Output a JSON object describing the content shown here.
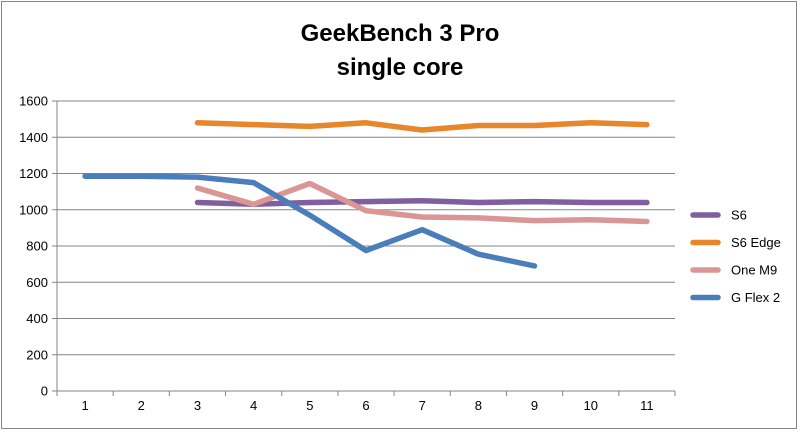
{
  "chart_data": {
    "type": "line",
    "title": "GeekBench 3 Pro",
    "subtitle": "single core",
    "xlabel": "",
    "ylabel": "",
    "x": [
      1,
      2,
      3,
      4,
      5,
      6,
      7,
      8,
      9,
      10,
      11
    ],
    "ylim": [
      0,
      1600
    ],
    "yticks": [
      0,
      200,
      400,
      600,
      800,
      1000,
      1200,
      1400,
      1600
    ],
    "grid": "horizontal",
    "legend": "right",
    "series": [
      {
        "name": "S6",
        "color": "#7F5F9F",
        "values": [
          null,
          null,
          1040,
          1030,
          1040,
          1045,
          1050,
          1040,
          1045,
          1040,
          1040
        ]
      },
      {
        "name": "S6 Edge",
        "color": "#E8862C",
        "values": [
          null,
          null,
          1480,
          1470,
          1460,
          1480,
          1440,
          1465,
          1465,
          1480,
          1470
        ]
      },
      {
        "name": "One M9",
        "color": "#D99694",
        "values": [
          null,
          null,
          1120,
          1030,
          1145,
          995,
          960,
          955,
          940,
          945,
          935
        ]
      },
      {
        "name": "G Flex 2",
        "color": "#4A7EBB",
        "values": [
          1185,
          1185,
          1180,
          1150,
          970,
          775,
          890,
          755,
          690,
          null,
          null
        ]
      }
    ]
  }
}
